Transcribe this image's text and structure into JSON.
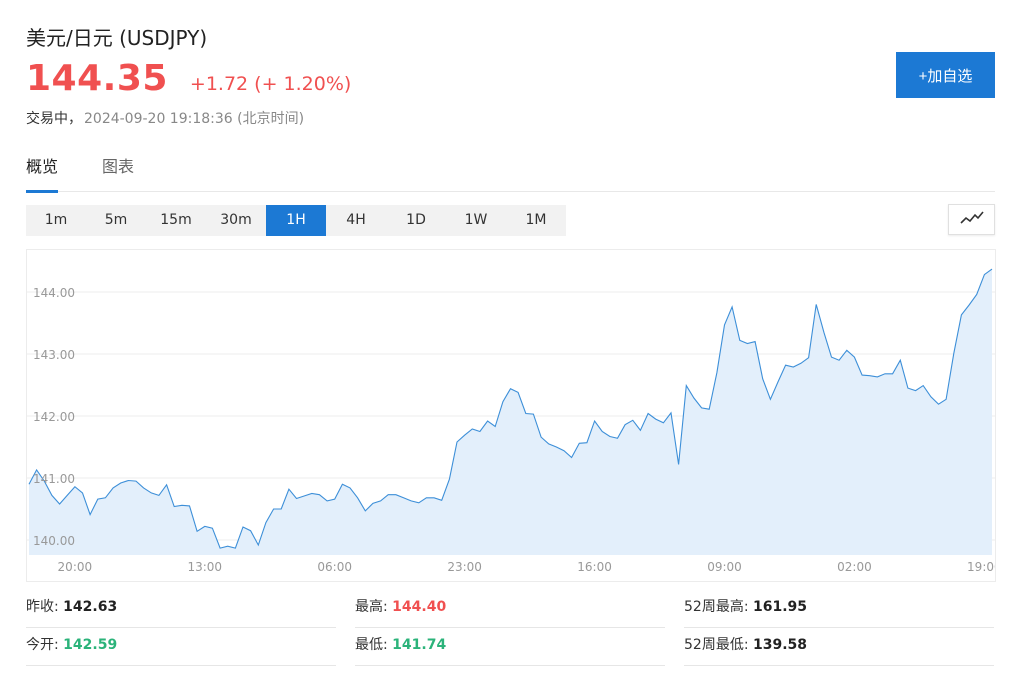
{
  "header": {
    "title": "美元/日元  (USDJPY)",
    "price": "144.35",
    "change": "+1.72",
    "change_pct": "(+ 1.20%)",
    "status": "交易中，",
    "timestamp": "2024-09-20 19:18:36  (北京时间)",
    "add_label": "+加自选"
  },
  "tabs": [
    {
      "label": "概览",
      "active": true
    },
    {
      "label": "图表",
      "active": false
    }
  ],
  "periods": [
    {
      "label": "1m",
      "active": false
    },
    {
      "label": "5m",
      "active": false
    },
    {
      "label": "15m",
      "active": false
    },
    {
      "label": "30m",
      "active": false
    },
    {
      "label": "1H",
      "active": true
    },
    {
      "label": "4H",
      "active": false
    },
    {
      "label": "1D",
      "active": false
    },
    {
      "label": "1W",
      "active": false
    },
    {
      "label": "1M",
      "active": false
    }
  ],
  "chart_icon": "line-chart-icon",
  "colors": {
    "up": "#f05050",
    "down": "#2bb37a",
    "accent": "#1c79d4",
    "line": "#3d8fd8",
    "area": "#e3effb"
  },
  "chart_data": {
    "type": "area",
    "ylim": [
      139.85,
      144.7
    ],
    "y_ticks": [
      140.0,
      141.0,
      142.0,
      143.0,
      144.0
    ],
    "y_tick_labels": [
      "140.00",
      "141.00",
      "142.00",
      "143.00",
      "144.00"
    ],
    "x_ticks": [
      {
        "index": 6,
        "label": "20:00"
      },
      {
        "index": 23,
        "label": "13:00"
      },
      {
        "index": 40,
        "label": "06:00"
      },
      {
        "index": 57,
        "label": "23:00"
      },
      {
        "index": 74,
        "label": "16:00"
      },
      {
        "index": 91,
        "label": "09:00"
      },
      {
        "index": 108,
        "label": "02:00"
      },
      {
        "index": 125,
        "label": "19:00"
      }
    ],
    "values": [
      140.9,
      141.13,
      140.95,
      140.72,
      140.58,
      140.72,
      140.86,
      140.76,
      140.41,
      140.66,
      140.68,
      140.84,
      140.92,
      140.96,
      140.95,
      140.84,
      140.76,
      140.72,
      140.89,
      140.54,
      140.56,
      140.55,
      140.14,
      140.22,
      140.19,
      139.87,
      139.9,
      139.87,
      140.21,
      140.15,
      139.92,
      140.28,
      140.5,
      140.5,
      140.82,
      140.67,
      140.71,
      140.75,
      140.73,
      140.63,
      140.66,
      140.9,
      140.84,
      140.68,
      140.47,
      140.59,
      140.63,
      140.73,
      140.73,
      140.68,
      140.63,
      140.6,
      140.68,
      140.68,
      140.64,
      140.98,
      141.58,
      141.69,
      141.79,
      141.75,
      141.92,
      141.83,
      142.23,
      142.44,
      142.38,
      142.04,
      142.03,
      141.66,
      141.55,
      141.5,
      141.44,
      141.33,
      141.56,
      141.57,
      141.92,
      141.75,
      141.67,
      141.64,
      141.86,
      141.93,
      141.77,
      142.04,
      141.95,
      141.89,
      142.05,
      141.22,
      142.49,
      142.29,
      142.13,
      142.11,
      142.7,
      143.47,
      143.76,
      143.22,
      143.17,
      143.2,
      142.6,
      142.27,
      142.55,
      142.82,
      142.79,
      142.85,
      142.94,
      143.8,
      143.35,
      142.95,
      142.9,
      143.06,
      142.95,
      142.66,
      142.65,
      142.63,
      142.68,
      142.68,
      142.9,
      142.45,
      142.41,
      142.49,
      142.31,
      142.19,
      142.27,
      143.01,
      143.63,
      143.79,
      143.96,
      144.28,
      144.37
    ]
  },
  "stats": {
    "prev_close_label": "昨收:",
    "prev_close": "142.63",
    "open_label": "今开:",
    "open": "142.59",
    "high_label": "最高:",
    "high": "144.40",
    "low_label": "最低:",
    "low": "141.74",
    "wk52_high_label": "52周最高:",
    "wk52_high": "161.95",
    "wk52_low_label": "52周最低:",
    "wk52_low": "139.58"
  }
}
